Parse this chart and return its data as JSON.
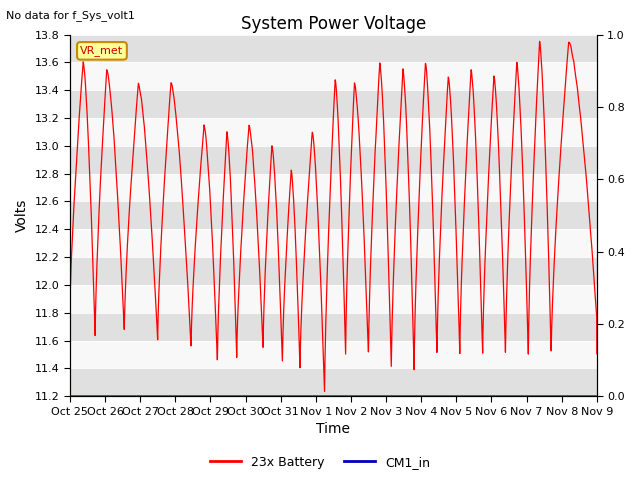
{
  "title": "System Power Voltage",
  "subtitle": "No data for f_Sys_volt1",
  "xlabel": "Time",
  "ylabel": "Volts",
  "ylim_left": [
    11.2,
    13.8
  ],
  "ylim_right": [
    0.0,
    1.0
  ],
  "yticks_left": [
    11.2,
    11.4,
    11.6,
    11.8,
    12.0,
    12.2,
    12.4,
    12.6,
    12.8,
    13.0,
    13.2,
    13.4,
    13.6,
    13.8
  ],
  "yticks_right": [
    0.0,
    0.2,
    0.4,
    0.6,
    0.8,
    1.0
  ],
  "xtick_labels": [
    "Oct 25",
    "Oct 26",
    "Oct 27",
    "Oct 28",
    "Oct 29",
    "Oct 30",
    "Oct 31",
    "Nov 1",
    "Nov 2",
    "Nov 3",
    "Nov 4",
    "Nov 5",
    "Nov 6",
    "Nov 7",
    "Nov 8",
    "Nov 9"
  ],
  "battery_color": "#ff0000",
  "cm1_color": "#0000bb",
  "plot_bg_color": "#f0f0f0",
  "band_color_dark": "#e0e0e0",
  "band_color_light": "#f8f8f8",
  "legend_label_battery": "23x Battery",
  "legend_label_cm1": "CM1_in",
  "vr_met_label": "VR_met",
  "title_fontsize": 12,
  "axis_label_fontsize": 10,
  "tick_fontsize": 8,
  "figsize": [
    6.4,
    4.8
  ],
  "dpi": 100,
  "cycles": {
    "troughs_x": [
      0.0,
      0.72,
      1.55,
      2.5,
      3.45,
      4.2,
      4.75,
      5.5,
      6.05,
      6.55,
      7.25,
      7.85,
      8.5,
      9.15,
      9.8,
      10.45,
      11.1,
      11.75,
      12.4,
      13.05,
      13.7,
      15.0
    ],
    "troughs_y": [
      11.78,
      11.63,
      11.67,
      11.6,
      11.55,
      11.45,
      11.48,
      11.55,
      11.45,
      11.4,
      11.22,
      11.5,
      11.5,
      11.4,
      11.4,
      11.5,
      11.5,
      11.5,
      11.5,
      11.5,
      11.5,
      11.75
    ],
    "peaks_x": [
      0.38,
      1.05,
      1.95,
      2.88,
      3.82,
      4.47,
      5.1,
      5.75,
      6.3,
      6.9,
      7.55,
      8.1,
      8.82,
      9.48,
      10.12,
      10.77,
      11.42,
      12.07,
      12.72,
      13.37,
      14.2
    ],
    "peaks_y": [
      13.6,
      13.55,
      13.45,
      13.45,
      13.15,
      13.1,
      13.15,
      13.0,
      12.82,
      13.1,
      13.48,
      13.46,
      13.6,
      13.55,
      13.6,
      13.5,
      13.55,
      13.5,
      13.6,
      13.75,
      13.75
    ]
  }
}
